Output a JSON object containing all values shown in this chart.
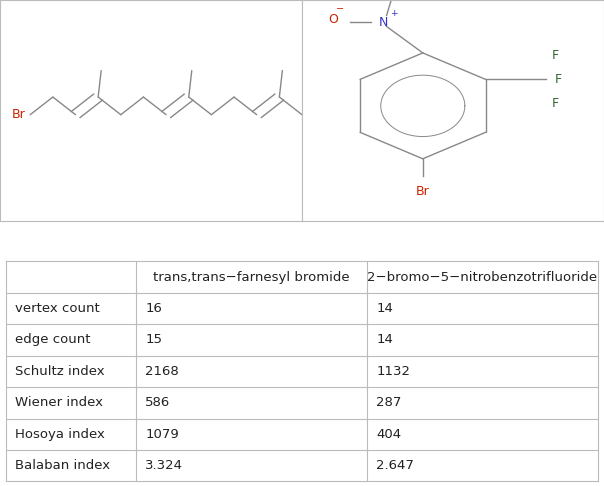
{
  "title1": "trans,trans−farnesyl bromide",
  "title2": "2−bromo−5−nitrobenzotrifluoride",
  "col_labels": [
    "",
    "trans,trans−farnesyl bromide",
    "2−bromo−5−nitrobenzotrifluoride"
  ],
  "row_labels": [
    "vertex count",
    "edge count",
    "Schultz index",
    "Wiener index",
    "Hosoya index",
    "Balaban index"
  ],
  "col1_vals": [
    "16",
    "15",
    "2168",
    "586",
    "1079",
    "3.324"
  ],
  "col2_vals": [
    "14",
    "14",
    "1132",
    "287",
    "404",
    "2.647"
  ],
  "bg_color": "#ffffff",
  "text_color": "#222222",
  "border_color": "#bbbbbb",
  "br_color": "#cc2200",
  "n_color": "#3333cc",
  "o_color": "#cc2200",
  "f_color": "#336633",
  "bond_color": "#888888",
  "font_size": 9.5,
  "title_font_size": 11
}
